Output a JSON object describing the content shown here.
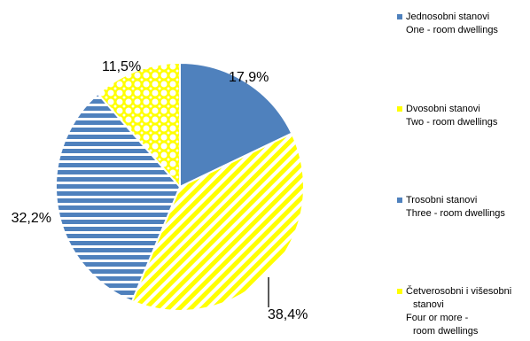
{
  "chart_data": {
    "type": "pie",
    "title": "",
    "slices": [
      {
        "label": "17,9%",
        "value": 17.9,
        "color": "#4F81BD",
        "pattern": "solid"
      },
      {
        "label": "38,4%",
        "value": 38.4,
        "color": "#FFFF00",
        "pattern": "diagonal-stripes"
      },
      {
        "label": "32,2%",
        "value": 32.2,
        "color": "#4F81BD",
        "pattern": "horizontal-stripes"
      },
      {
        "label": "11,5%",
        "value": 11.5,
        "color": "#FFFF00",
        "pattern": "dots"
      }
    ],
    "start_angle_deg": 0,
    "direction": "clockwise",
    "legend_position": "right"
  },
  "legend": [
    {
      "line1": "Jednosobni stanovi",
      "line2": "One - room dwellings",
      "color": "#4F81BD"
    },
    {
      "line1": "Dvosobni stanovi",
      "line2": "Two - room dwellings",
      "color": "#FFFF00"
    },
    {
      "line1": "Trosobni stanovi",
      "line2": "Three - room dwellings",
      "color": "#4F81BD"
    },
    {
      "line1": "Četverosobni i višesobni",
      "line1b": "stanovi",
      "line2": "Four or more -",
      "line2b": "room dwellings",
      "color": "#FFFF00"
    }
  ]
}
